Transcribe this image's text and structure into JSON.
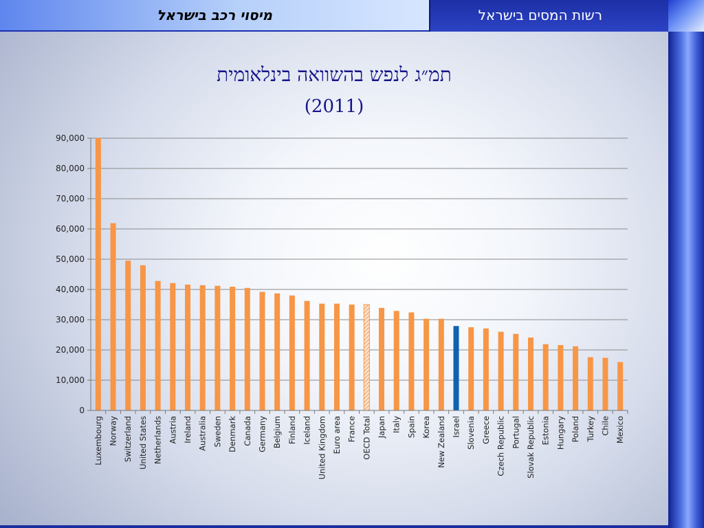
{
  "header": {
    "presentation_title": "מיסוי רכב בישראל",
    "org_name": "רשות המסים בישראל"
  },
  "colors": {
    "bar": "#f79646",
    "highlight": "#0d62b1",
    "gridline": "#8a8a8a"
  },
  "chart_data": {
    "type": "bar",
    "title": "תמ״ג לנפש בהשוואה בינלאומית",
    "subtitle": "(2011)",
    "xlabel": "",
    "ylabel": "",
    "ylim": [
      0,
      90000
    ],
    "yticks": [
      "0",
      "10,000",
      "20,000",
      "30,000",
      "40,000",
      "50,000",
      "60,000",
      "70,000",
      "80,000",
      "90,000"
    ],
    "grid": true,
    "legend": "none",
    "categories": [
      "Luxembourg",
      "Norway",
      "Switzerland",
      "United States",
      "Netherlands",
      "Austria",
      "Ireland",
      "Australia",
      "Sweden",
      "Denmark",
      "Canada",
      "Germany",
      "Belgium",
      "Finland",
      "Iceland",
      "United Kingdom",
      "Euro area",
      "France",
      "OECD Total",
      "Japan",
      "Italy",
      "Spain",
      "Korea",
      "New Zealand",
      "Israel",
      "Slovenia",
      "Greece",
      "Czech Republic",
      "Portugal",
      "Slovak Republic",
      "Estonia",
      "Hungary",
      "Poland",
      "Turkey",
      "Chile",
      "Mexico"
    ],
    "values": [
      90000,
      61900,
      49500,
      48000,
      42800,
      42100,
      41600,
      41400,
      41200,
      40900,
      40500,
      39200,
      38700,
      38000,
      36200,
      35300,
      35300,
      35000,
      35000,
      33900,
      32900,
      32400,
      30300,
      30300,
      27900,
      27500,
      27100,
      26000,
      25300,
      24100,
      21900,
      21600,
      21200,
      17600,
      17400,
      16000
    ],
    "highlighted": [
      "Israel"
    ],
    "hatched": [
      "OECD Total"
    ]
  }
}
